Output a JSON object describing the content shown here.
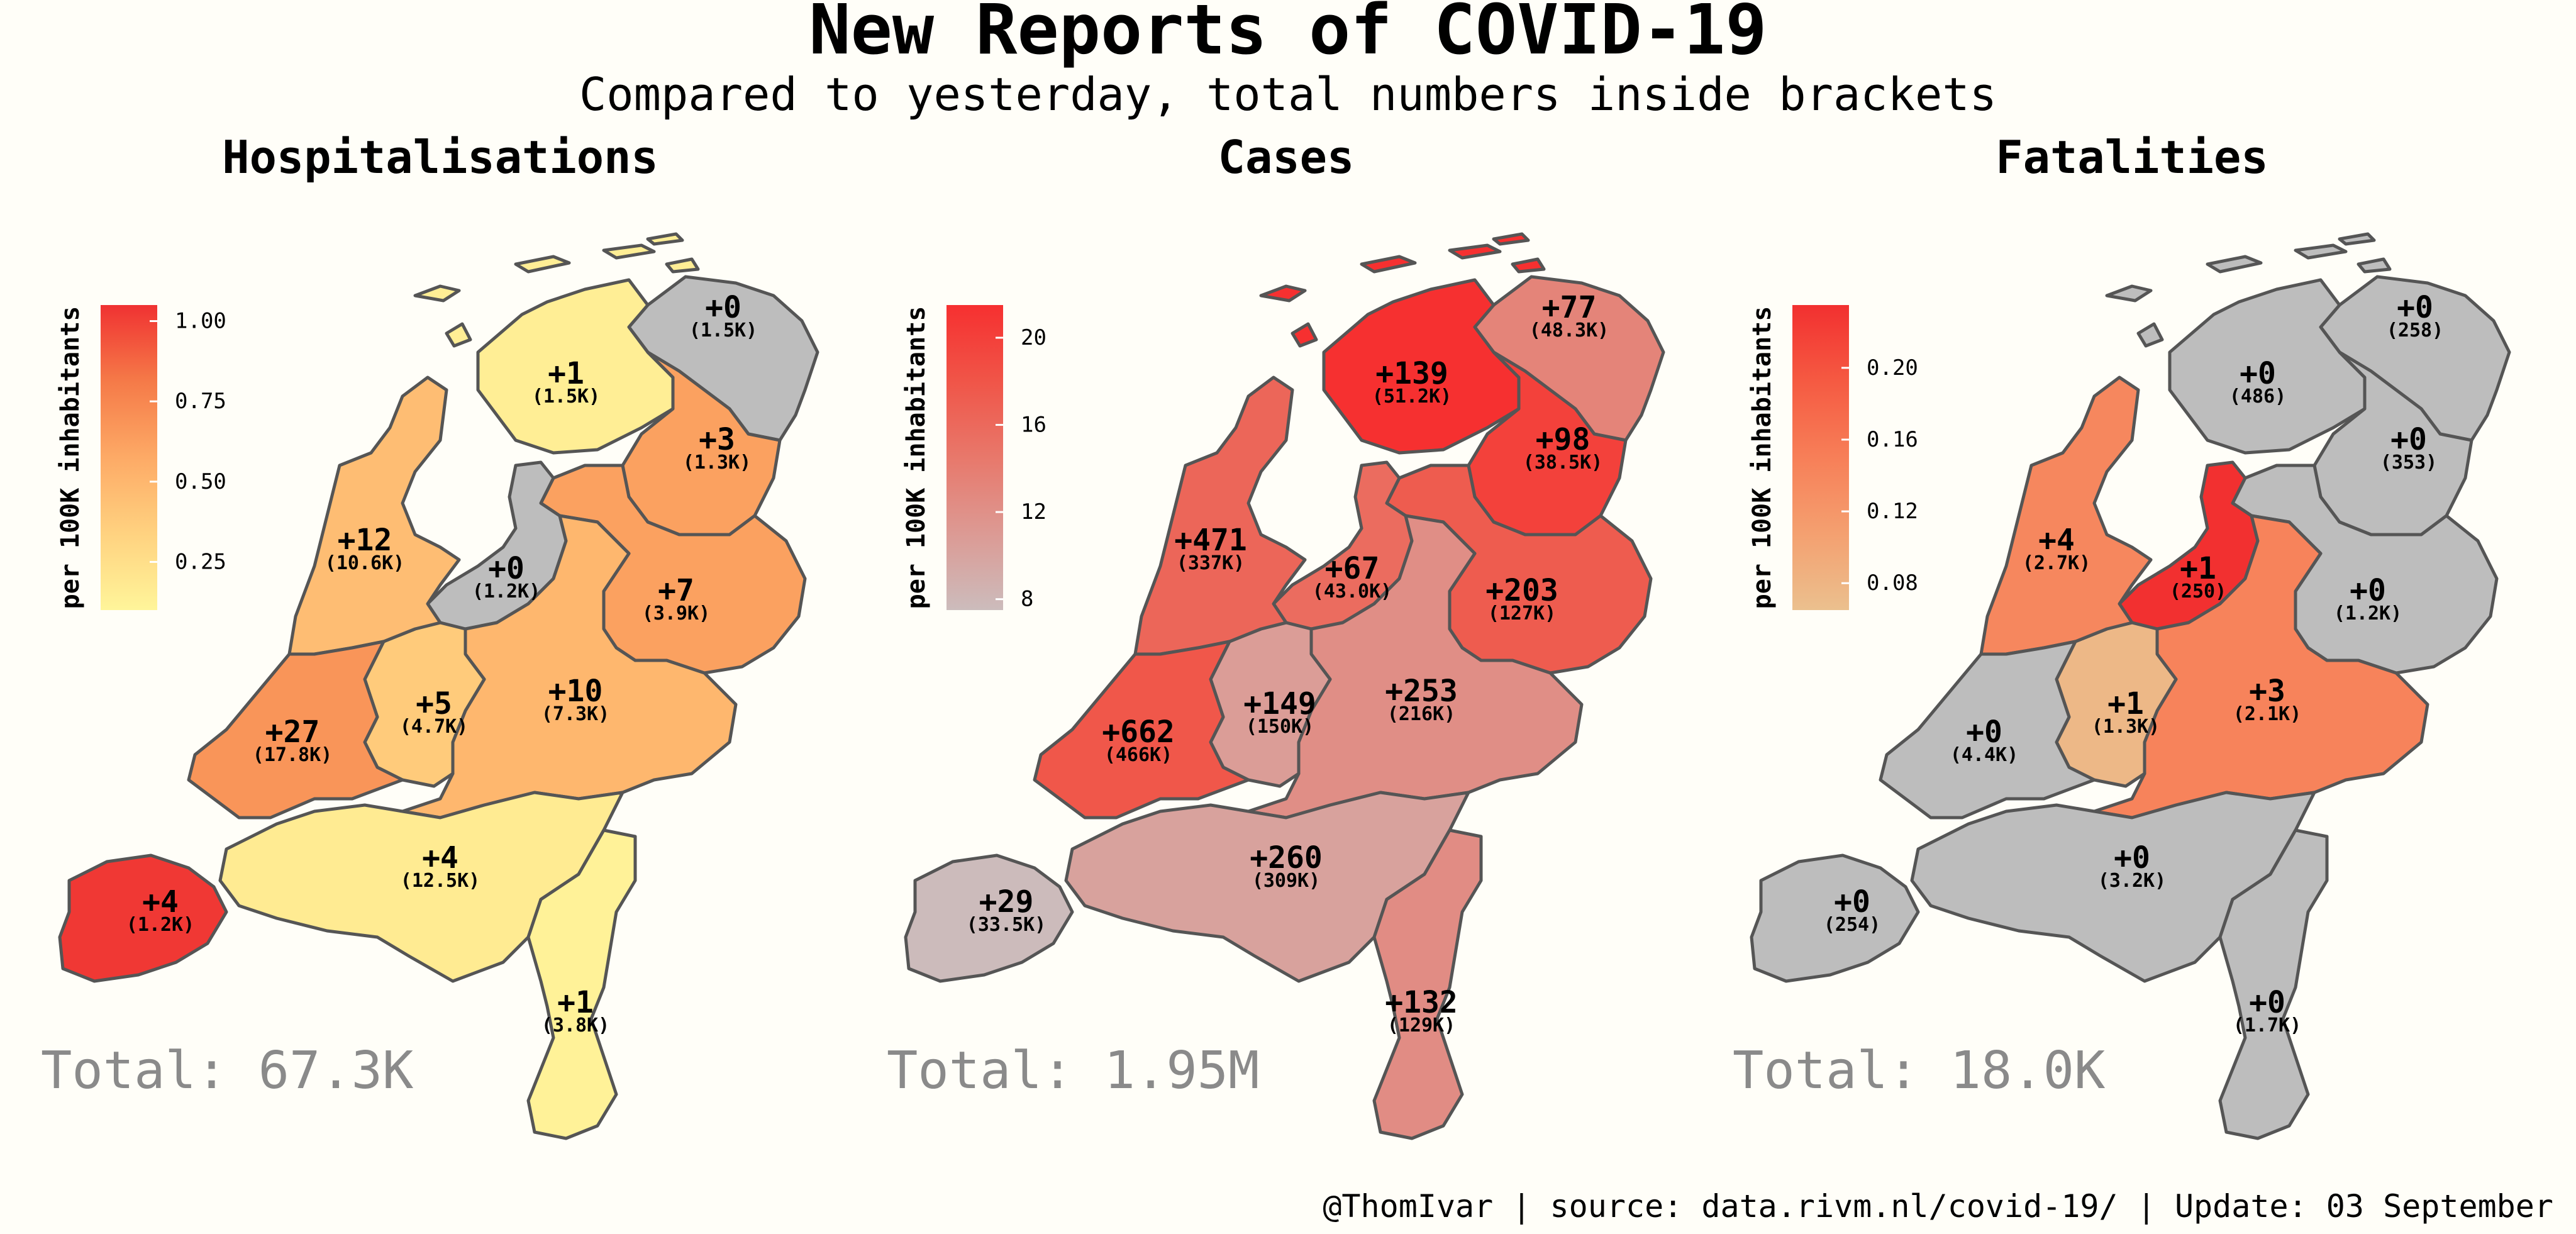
{
  "chart_data": {
    "type": "choropleth-map",
    "title": "New Reports of COVID-19",
    "subtitle": "Compared to yesterday, total numbers inside brackets",
    "caption": "@ThomIvar | source: data.rivm.nl/covid-19/ | Update: 03 September",
    "legend_title": "per 100K inhabitants",
    "no_data_color": "#bdbdbd",
    "panels": [
      {
        "name": "Hospitalisations",
        "total": "Total: 67.3K",
        "legend": {
          "range": [
            0.1,
            1.05
          ],
          "ticks": [
            "1.00",
            "0.75",
            "0.50",
            "0.25"
          ],
          "tick_values": [
            1.0,
            0.75,
            0.5,
            0.25
          ],
          "colors": [
            "#fff59a",
            "#ffd280",
            "#fdaa66",
            "#f57a48",
            "#f03232"
          ]
        },
        "regions": [
          {
            "key": "groningen",
            "new": "+0",
            "total": "(1.5K)",
            "value": null
          },
          {
            "key": "friesland",
            "new": "+1",
            "total": "(1.5K)",
            "value": 0.15
          },
          {
            "key": "drenthe",
            "new": "+3",
            "total": "(1.3K)",
            "value": 0.62
          },
          {
            "key": "overijssel",
            "new": "+7",
            "total": "(3.9K)",
            "value": 0.62
          },
          {
            "key": "flevoland",
            "new": "+0",
            "total": "(1.2K)",
            "value": null
          },
          {
            "key": "gelderland",
            "new": "+10",
            "total": "(7.3K)",
            "value": 0.5
          },
          {
            "key": "utrecht",
            "new": "+5",
            "total": "(4.7K)",
            "value": 0.38
          },
          {
            "key": "noord_holland",
            "new": "+12",
            "total": "(10.6K)",
            "value": 0.46
          },
          {
            "key": "zuid_holland",
            "new": "+27",
            "total": "(17.8K)",
            "value": 0.68
          },
          {
            "key": "zeeland",
            "new": "+4",
            "total": "(1.2K)",
            "value": 1.03
          },
          {
            "key": "noord_brabant",
            "new": "+4",
            "total": "(12.5K)",
            "value": 0.17
          },
          {
            "key": "limburg",
            "new": "+1",
            "total": "(3.8K)",
            "value": 0.12
          }
        ]
      },
      {
        "name": "Cases",
        "total": "Total: 1.95M",
        "legend": {
          "range": [
            7.5,
            21.5
          ],
          "ticks": [
            "20",
            "16",
            "12",
            "8"
          ],
          "tick_values": [
            20,
            16,
            12,
            8
          ],
          "colors": [
            "#ccbcbc",
            "#dc9a94",
            "#e8786b",
            "#f05548",
            "#f63030"
          ]
        },
        "regions": [
          {
            "key": "groningen",
            "new": "+77",
            "total": "(48.3K)",
            "value": 13.3
          },
          {
            "key": "friesland",
            "new": "+139",
            "total": "(51.2K)",
            "value": 21.6
          },
          {
            "key": "drenthe",
            "new": "+98",
            "total": "(38.5K)",
            "value": 19.9
          },
          {
            "key": "overijssel",
            "new": "+203",
            "total": "(127K)",
            "value": 17.3
          },
          {
            "key": "flevoland",
            "new": "+67",
            "total": "(43.0K)",
            "value": 15.7
          },
          {
            "key": "gelderland",
            "new": "+253",
            "total": "(216K)",
            "value": 12.2
          },
          {
            "key": "utrecht",
            "new": "+149",
            "total": "(150K)",
            "value": 10.7
          },
          {
            "key": "noord_holland",
            "new": "+471",
            "total": "(337K)",
            "value": 16.3
          },
          {
            "key": "zuid_holland",
            "new": "+662",
            "total": "(466K)",
            "value": 17.8
          },
          {
            "key": "zeeland",
            "new": "+29",
            "total": "(33.5K)",
            "value": 7.6
          },
          {
            "key": "noord_brabant",
            "new": "+260",
            "total": "(309K)",
            "value": 10.2
          },
          {
            "key": "limburg",
            "new": "+132",
            "total": "(129K)",
            "value": 12.4
          }
        ]
      },
      {
        "name": "Fatalities",
        "total": "Total: 18.0K",
        "legend": {
          "range": [
            0.065,
            0.235
          ],
          "ticks": [
            "0.20",
            "0.16",
            "0.12",
            "0.08"
          ],
          "tick_values": [
            0.2,
            0.16,
            0.12,
            0.08
          ],
          "colors": [
            "#ebc08e",
            "#f4a070",
            "#f77f58",
            "#f55a42",
            "#f23030"
          ]
        },
        "regions": [
          {
            "key": "groningen",
            "new": "+0",
            "total": "(258)",
            "value": null
          },
          {
            "key": "friesland",
            "new": "+0",
            "total": "(486)",
            "value": null
          },
          {
            "key": "drenthe",
            "new": "+0",
            "total": "(353)",
            "value": null
          },
          {
            "key": "overijssel",
            "new": "+0",
            "total": "(1.2K)",
            "value": null
          },
          {
            "key": "flevoland",
            "new": "+1",
            "total": "(250)",
            "value": 0.24
          },
          {
            "key": "gelderland",
            "new": "+3",
            "total": "(2.1K)",
            "value": 0.145
          },
          {
            "key": "utrecht",
            "new": "+1",
            "total": "(1.3K)",
            "value": 0.075
          },
          {
            "key": "noord_holland",
            "new": "+4",
            "total": "(2.7K)",
            "value": 0.14
          },
          {
            "key": "zuid_holland",
            "new": "+0",
            "total": "(4.4K)",
            "value": null
          },
          {
            "key": "zeeland",
            "new": "+0",
            "total": "(254)",
            "value": null
          },
          {
            "key": "noord_brabant",
            "new": "+0",
            "total": "(3.2K)",
            "value": null
          },
          {
            "key": "limburg",
            "new": "+0",
            "total": "(1.7K)",
            "value": null
          }
        ]
      }
    ]
  }
}
